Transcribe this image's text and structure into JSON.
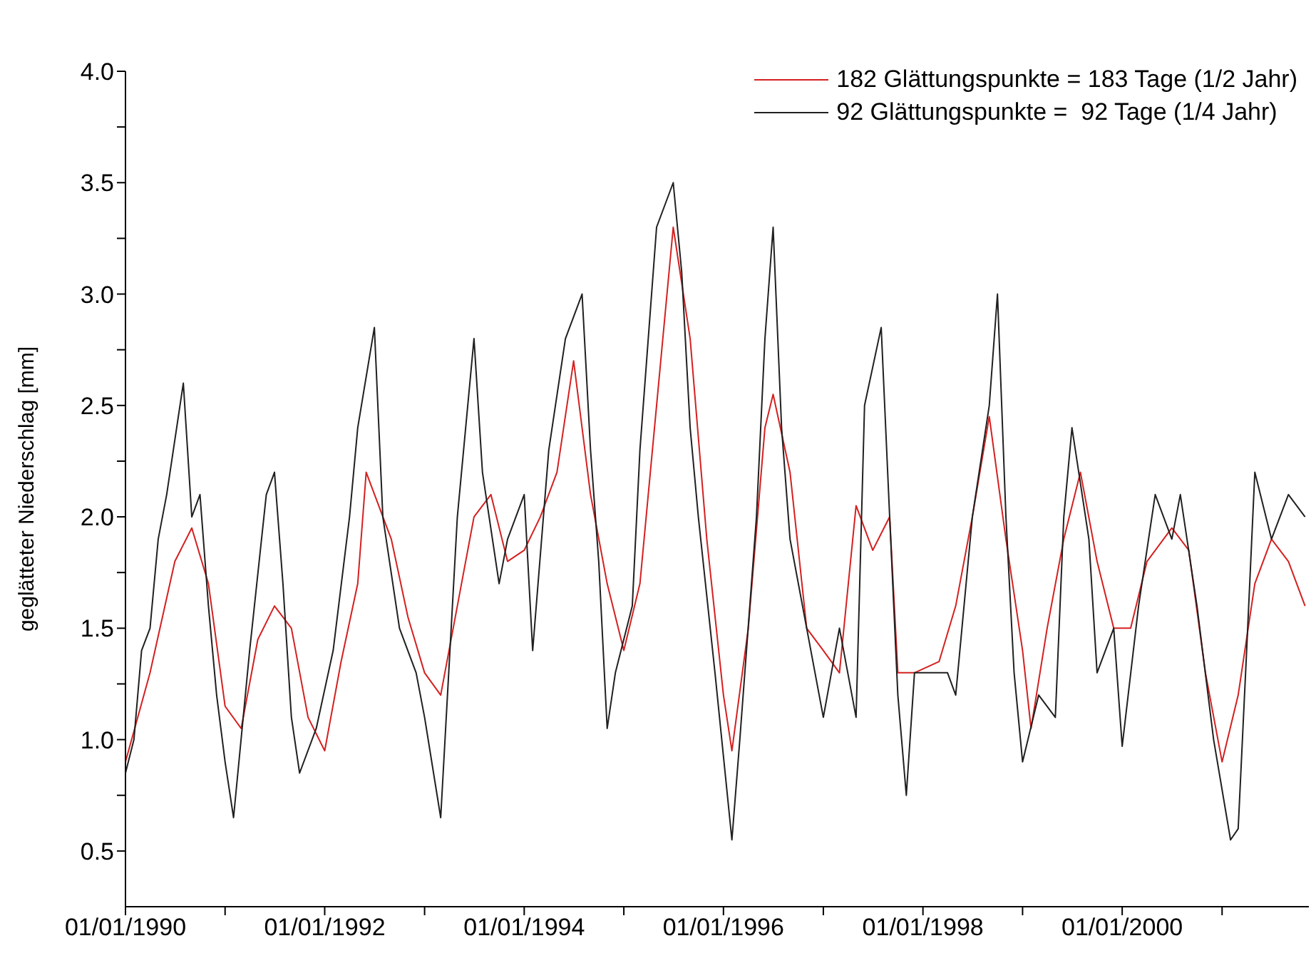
{
  "chart_data": {
    "type": "line",
    "ylabel": "geglätteter Niederschlag [mm]",
    "xlim": [
      "1990-01-01",
      "2001-11-15"
    ],
    "ylim": [
      0.25,
      4.0
    ],
    "yticks": [
      {
        "value": 0.5,
        "label": "0.5"
      },
      {
        "value": 0.75,
        "label": null
      },
      {
        "value": 1.0,
        "label": "1.0"
      },
      {
        "value": 1.25,
        "label": null
      },
      {
        "value": 1.5,
        "label": "1.5"
      },
      {
        "value": 1.75,
        "label": null
      },
      {
        "value": 2.0,
        "label": "2.0"
      },
      {
        "value": 2.25,
        "label": null
      },
      {
        "value": 2.5,
        "label": "2.5"
      },
      {
        "value": 2.75,
        "label": null
      },
      {
        "value": 3.0,
        "label": "3.0"
      },
      {
        "value": 3.25,
        "label": null
      },
      {
        "value": 3.5,
        "label": "3.5"
      },
      {
        "value": 3.75,
        "label": null
      },
      {
        "value": 4.0,
        "label": "4.0"
      }
    ],
    "xticks": [
      {
        "value": "1990-01-01",
        "label": "01/01/1990"
      },
      {
        "value": "1991-01-01",
        "label": null
      },
      {
        "value": "1992-01-01",
        "label": "01/01/1992"
      },
      {
        "value": "1993-01-01",
        "label": null
      },
      {
        "value": "1994-01-01",
        "label": "01/01/1994"
      },
      {
        "value": "1995-01-01",
        "label": null
      },
      {
        "value": "1996-01-01",
        "label": "01/01/1996"
      },
      {
        "value": "1997-01-01",
        "label": null
      },
      {
        "value": "1998-01-01",
        "label": "01/01/1998"
      },
      {
        "value": "1999-01-01",
        "label": null
      },
      {
        "value": "2000-01-01",
        "label": "01/01/2000"
      },
      {
        "value": "2001-01-01",
        "label": null
      }
    ],
    "grid": false,
    "legend": "top right",
    "marker": "none",
    "line_style": "solid",
    "series": [
      {
        "name": "182 Glättungspunkte = 183 Tage (1/2 Jahr)",
        "color": "#d42020",
        "x": [
          "1990-01",
          "1990-04",
          "1990-07",
          "1990-09",
          "1990-11",
          "1991-01",
          "1991-03",
          "1991-05",
          "1991-07",
          "1991-09",
          "1991-11",
          "1992-01",
          "1992-03",
          "1992-05",
          "1992-06",
          "1992-09",
          "1992-11",
          "1993-01",
          "1993-03",
          "1993-05",
          "1993-07",
          "1993-09",
          "1993-11",
          "1994-01",
          "1994-03",
          "1994-05",
          "1994-07",
          "1994-09",
          "1994-11",
          "1995-01",
          "1995-03",
          "1995-05",
          "1995-07",
          "1995-09",
          "1995-11",
          "1996-01",
          "1996-02",
          "1996-04",
          "1996-06",
          "1996-07",
          "1996-09",
          "1996-11",
          "1997-01",
          "1997-03",
          "1997-05",
          "1997-07",
          "1997-09",
          "1997-10",
          "1997-12",
          "1998-03",
          "1998-05",
          "1998-07",
          "1998-09",
          "1998-11",
          "1999-01",
          "1999-02",
          "1999-04",
          "1999-06",
          "1999-08",
          "1999-10",
          "1999-12",
          "2000-02",
          "2000-04",
          "2000-07",
          "2000-09",
          "2000-11",
          "2001-01",
          "2001-03",
          "2001-05",
          "2001-07",
          "2001-09",
          "2001-11"
        ],
        "values": [
          0.9,
          1.3,
          1.8,
          1.95,
          1.7,
          1.15,
          1.05,
          1.45,
          1.6,
          1.5,
          1.1,
          0.95,
          1.35,
          1.7,
          2.2,
          1.9,
          1.55,
          1.3,
          1.2,
          1.6,
          2.0,
          2.1,
          1.8,
          1.85,
          2.0,
          2.2,
          2.7,
          2.1,
          1.7,
          1.4,
          1.7,
          2.5,
          3.3,
          2.8,
          1.9,
          1.2,
          0.95,
          1.5,
          2.4,
          2.55,
          2.2,
          1.5,
          1.4,
          1.3,
          2.05,
          1.85,
          2.0,
          1.3,
          1.3,
          1.35,
          1.6,
          2.0,
          2.45,
          1.9,
          1.4,
          1.05,
          1.5,
          1.9,
          2.2,
          1.8,
          1.5,
          1.5,
          1.8,
          1.95,
          1.85,
          1.3,
          0.9,
          1.2,
          1.7,
          1.9,
          1.8,
          1.6
        ]
      },
      {
        "name": "92 Glättungspunkte =  92 Tage (1/4 Jahr)",
        "color": "#202020",
        "x": [
          "1990-01",
          "1990-02",
          "1990-03",
          "1990-04",
          "1990-05",
          "1990-06",
          "1990-08",
          "1990-09",
          "1990-10",
          "1990-11",
          "1990-12",
          "1991-01",
          "1991-02",
          "1991-04",
          "1991-06",
          "1991-07",
          "1991-08",
          "1991-09",
          "1991-10",
          "1991-12",
          "1992-02",
          "1992-04",
          "1992-05",
          "1992-07",
          "1992-08",
          "1992-10",
          "1992-12",
          "1993-01",
          "1993-03",
          "1993-05",
          "1993-07",
          "1993-08",
          "1993-10",
          "1993-11",
          "1994-01",
          "1994-02",
          "1994-04",
          "1994-06",
          "1994-08",
          "1994-09",
          "1994-10",
          "1994-11",
          "1994-12",
          "1995-02",
          "1995-03",
          "1995-05",
          "1995-07",
          "1995-08",
          "1995-09",
          "1995-10",
          "1995-12",
          "1996-02",
          "1996-03",
          "1996-05",
          "1996-06",
          "1996-07",
          "1996-08",
          "1996-09",
          "1996-11",
          "1997-01",
          "1997-03",
          "1997-05",
          "1997-06",
          "1997-08",
          "1997-09",
          "1997-10",
          "1997-11",
          "1997-12",
          "1998-02",
          "1998-04",
          "1998-05",
          "1998-07",
          "1998-09",
          "1998-10",
          "1998-11",
          "1998-12",
          "1999-01",
          "1999-03",
          "1999-05",
          "1999-06",
          "1999-07",
          "1999-09",
          "1999-10",
          "1999-12",
          "2000-01",
          "2000-03",
          "2000-05",
          "2000-07",
          "2000-08",
          "2000-10",
          "2000-12",
          "2001-02",
          "2001-03",
          "2001-04",
          "2001-05",
          "2001-07",
          "2001-09",
          "2001-11"
        ],
        "values": [
          0.85,
          1.0,
          1.4,
          1.5,
          1.9,
          2.1,
          2.6,
          2.0,
          2.1,
          1.6,
          1.2,
          0.9,
          0.65,
          1.4,
          2.1,
          2.2,
          1.7,
          1.1,
          0.85,
          1.05,
          1.4,
          2.0,
          2.4,
          2.85,
          2.0,
          1.5,
          1.3,
          1.1,
          0.65,
          2.0,
          2.8,
          2.2,
          1.7,
          1.9,
          2.1,
          1.4,
          2.3,
          2.8,
          3.0,
          2.3,
          1.8,
          1.05,
          1.3,
          1.6,
          2.3,
          3.3,
          3.5,
          3.1,
          2.4,
          2.0,
          1.3,
          0.55,
          1.0,
          2.0,
          2.8,
          3.3,
          2.4,
          1.9,
          1.5,
          1.1,
          1.5,
          1.1,
          2.5,
          2.85,
          2.0,
          1.2,
          0.75,
          1.3,
          1.3,
          1.3,
          1.2,
          2.0,
          2.5,
          3.0,
          2.0,
          1.3,
          0.9,
          1.2,
          1.1,
          2.0,
          2.4,
          1.9,
          1.3,
          1.5,
          0.97,
          1.6,
          2.1,
          1.9,
          2.1,
          1.6,
          1.0,
          0.55,
          0.6,
          1.4,
          2.2,
          1.9,
          2.1,
          2.0
        ]
      }
    ]
  }
}
